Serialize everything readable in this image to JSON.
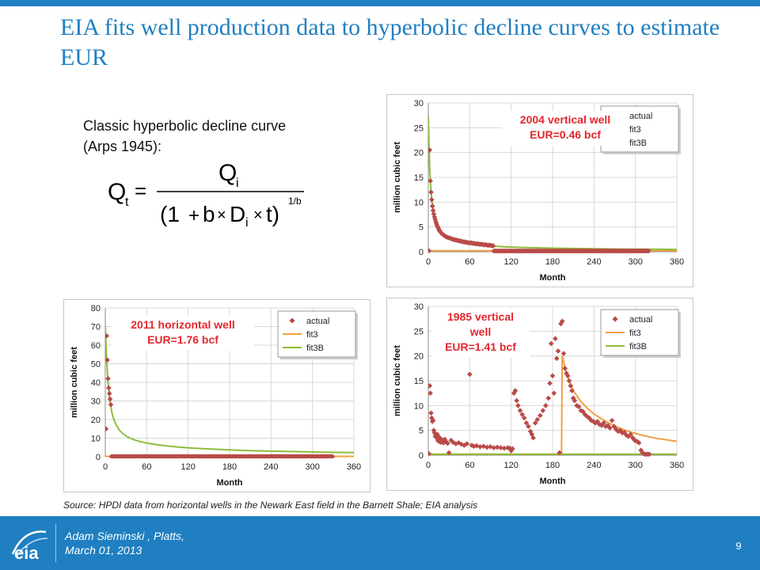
{
  "slide": {
    "title": "EIA fits well production data to hyperbolic decline curves to estimate EUR",
    "intro_line1": "Classic hyperbolic decline curve",
    "intro_line2": "(Arps 1945):",
    "formula": {
      "lhs": "Q",
      "lhs_sub": "t",
      "numerator": "Q",
      "numerator_sub": "i",
      "paren_open": "(1",
      "plus": "+",
      "b": "b",
      "times": "×",
      "d": "D",
      "d_sub": "i",
      "t_close": "t)",
      "exponent": "1/b"
    },
    "source": "Source: HPDI data from horizontal wells in the Newark East field in the Barnett Shale; EIA analysis",
    "footer_author": "Adam Sieminski , Platts,",
    "footer_date": "March 01, 2013",
    "page_number": "9",
    "logo_text": "eia"
  },
  "chart_data": [
    {
      "type": "scatter",
      "annotation_line1": "2004 vertical well",
      "annotation_line2": "EUR=0.46 bcf",
      "xlabel": "Month",
      "ylabel": "million cubic feet",
      "xlim": [
        0,
        360
      ],
      "ylim": [
        0,
        30
      ],
      "xticks": [
        0,
        60,
        120,
        180,
        240,
        300,
        360
      ],
      "yticks": [
        0,
        5,
        10,
        15,
        20,
        25,
        30
      ],
      "grid": true,
      "legend_position": "top-right",
      "series": [
        {
          "name": "actual",
          "kind": "scatter",
          "color": "#b94a48",
          "x": [
            1,
            2,
            3,
            4,
            5,
            6,
            7,
            8,
            9,
            10,
            11,
            12,
            13,
            14,
            15,
            16,
            17,
            18,
            20,
            22,
            24,
            26,
            28,
            30,
            32,
            34,
            36,
            38,
            40,
            42,
            44,
            46,
            48,
            50,
            52,
            54,
            56,
            58,
            60,
            62,
            64,
            66,
            68,
            70,
            72,
            74,
            76,
            78,
            80,
            82,
            84,
            86,
            88,
            90,
            92,
            94
          ],
          "y": [
            0.2,
            20.5,
            14.3,
            12.0,
            10.5,
            9.2,
            8.3,
            7.6,
            7.0,
            6.5,
            6.0,
            5.6,
            5.2,
            4.9,
            4.6,
            4.3,
            4.1,
            3.9,
            3.6,
            3.4,
            3.2,
            3.0,
            2.9,
            2.8,
            2.7,
            2.6,
            2.5,
            2.4,
            2.4,
            2.3,
            2.2,
            2.2,
            2.1,
            2.0,
            2.0,
            1.9,
            1.9,
            1.8,
            1.8,
            1.8,
            1.7,
            1.7,
            1.6,
            1.6,
            1.6,
            1.5,
            1.5,
            1.5,
            1.4,
            1.4,
            1.4,
            1.3,
            1.3,
            1.3,
            1.2,
            1.2
          ]
        },
        {
          "name": "fit3",
          "kind": "line",
          "color": "#f0a041",
          "x": [
            0,
            360
          ],
          "y": [
            0.2,
            0.2
          ]
        },
        {
          "name": "fit3B",
          "kind": "line",
          "color": "#8fbc3a",
          "x": [
            0,
            2,
            4,
            6,
            8,
            10,
            12,
            15,
            18,
            22,
            26,
            30,
            36,
            42,
            50,
            60,
            75,
            90,
            110,
            130,
            150,
            180,
            210,
            240,
            270,
            300,
            330,
            360
          ],
          "y": [
            27.5,
            17.0,
            12.0,
            9.3,
            7.6,
            6.4,
            5.6,
            4.7,
            4.1,
            3.5,
            3.0,
            2.7,
            2.3,
            2.0,
            1.75,
            1.5,
            1.3,
            1.15,
            1.0,
            0.9,
            0.82,
            0.72,
            0.66,
            0.6,
            0.55,
            0.52,
            0.49,
            0.46
          ]
        }
      ],
      "zero_points_range": [
        95,
        320
      ]
    },
    {
      "type": "scatter",
      "annotation_line1": "2011 horizontal well",
      "annotation_line2": "EUR=1.76 bcf",
      "xlabel": "Month",
      "ylabel": "million cubic feet",
      "xlim": [
        0,
        360
      ],
      "ylim": [
        0,
        80
      ],
      "xticks": [
        0,
        60,
        120,
        180,
        240,
        300,
        360
      ],
      "yticks": [
        0,
        10,
        20,
        30,
        40,
        50,
        60,
        70,
        80
      ],
      "grid": true,
      "legend_position": "top-right",
      "series": [
        {
          "name": "actual",
          "kind": "scatter",
          "color": "#b94a48",
          "x": [
            1,
            2,
            3,
            4,
            5,
            6,
            7,
            8
          ],
          "y": [
            15,
            65,
            52,
            42,
            37,
            34,
            31,
            28
          ]
        },
        {
          "name": "fit3",
          "kind": "line",
          "color": "#f0a041",
          "x": [
            0,
            360
          ],
          "y": [
            0.2,
            0.2
          ]
        },
        {
          "name": "fit3B",
          "kind": "line",
          "color": "#8fbc3a",
          "x": [
            0,
            2,
            4,
            6,
            8,
            10,
            13,
            16,
            20,
            25,
            30,
            36,
            42,
            50,
            60,
            75,
            90,
            110,
            130,
            150,
            180,
            210,
            240,
            270,
            300,
            330,
            360
          ],
          "y": [
            70,
            52,
            40,
            32,
            27,
            23,
            19.5,
            17,
            14.5,
            12.6,
            11.2,
            10,
            9.1,
            8.2,
            7.4,
            6.5,
            5.8,
            5.1,
            4.6,
            4.2,
            3.7,
            3.3,
            3.0,
            2.8,
            2.6,
            2.4,
            2.2
          ]
        }
      ],
      "zero_points_range": [
        9,
        330
      ]
    },
    {
      "type": "scatter",
      "annotation_line1": "1985 vertical",
      "annotation_line2": "well",
      "annotation_line3": "EUR=1.41 bcf",
      "xlabel": "Month",
      "ylabel": "million cubic feet",
      "xlim": [
        0,
        360
      ],
      "ylim": [
        0,
        30
      ],
      "xticks": [
        0,
        60,
        120,
        180,
        240,
        300,
        360
      ],
      "yticks": [
        0,
        5,
        10,
        15,
        20,
        25,
        30
      ],
      "grid": true,
      "legend_position": "top-right",
      "series": [
        {
          "name": "actual",
          "kind": "scatter",
          "color": "#b94a48",
          "x": [
            1,
            2,
            3,
            4,
            5,
            6,
            7,
            8,
            9,
            10,
            11,
            12,
            13,
            14,
            15,
            16,
            17,
            18,
            20,
            22,
            24,
            26,
            28,
            30,
            33,
            36,
            40,
            44,
            48,
            52,
            56,
            60,
            63,
            66,
            70,
            75,
            80,
            85,
            90,
            95,
            100,
            105,
            110,
            115,
            118,
            120,
            122,
            124,
            126,
            128,
            130,
            133,
            136,
            139,
            142,
            145,
            148,
            150,
            152,
            155,
            158,
            162,
            166,
            170,
            174,
            176,
            178,
            180,
            182,
            184,
            186,
            188,
            190,
            192,
            194,
            196,
            198,
            200,
            202,
            204,
            206,
            208,
            210,
            212,
            215,
            218,
            221,
            224,
            227,
            230,
            233,
            236,
            239,
            242,
            245,
            248,
            251,
            254,
            257,
            260,
            263,
            266,
            269,
            272,
            275,
            278,
            281,
            284,
            287,
            290,
            293,
            296,
            299,
            302,
            305,
            308,
            310,
            312,
            314,
            316,
            318,
            320
          ],
          "y": [
            0.3,
            14.0,
            12.5,
            8.5,
            7.5,
            6.8,
            7.0,
            5.0,
            4.5,
            3.8,
            4.0,
            3.5,
            4.2,
            3.0,
            2.8,
            3.6,
            2.9,
            2.6,
            3.1,
            2.5,
            3.2,
            2.7,
            2.4,
            0.5,
            3.0,
            2.6,
            2.3,
            2.5,
            2.2,
            2.0,
            2.3,
            16.3,
            2.0,
            1.8,
            1.9,
            1.7,
            1.8,
            1.6,
            1.7,
            1.5,
            1.6,
            1.5,
            1.4,
            1.5,
            1.4,
            0.9,
            1.3,
            12.5,
            13.0,
            11.0,
            10.0,
            9.0,
            8.2,
            7.5,
            6.5,
            5.8,
            4.8,
            4.2,
            3.5,
            6.5,
            7.2,
            8.0,
            9.0,
            10.0,
            11.5,
            14.5,
            22.5,
            16.0,
            12.5,
            23.5,
            19.5,
            21.0,
            0.5,
            26.5,
            27.0,
            20.5,
            17.5,
            16.5,
            16.0,
            15.0,
            14.0,
            13.0,
            11.5,
            11.0,
            10.0,
            9.8,
            9.0,
            8.8,
            8.2,
            7.8,
            7.5,
            7.0,
            6.8,
            6.5,
            6.8,
            6.2,
            6.0,
            6.5,
            5.8,
            6.0,
            5.5,
            7.0,
            5.8,
            5.2,
            4.8,
            5.0,
            4.5,
            4.6,
            4.0,
            3.8,
            4.2,
            3.5,
            3.0,
            2.8,
            2.5,
            1.0,
            0.5,
            0.3,
            0.2,
            0.2,
            0.2,
            0.2
          ]
        },
        {
          "name": "fit3",
          "kind": "line",
          "color": "#f0a041",
          "x": [
            0,
            193,
            194,
            195,
            200,
            210,
            220,
            230,
            240,
            250,
            260,
            270,
            280,
            290,
            300,
            310,
            320,
            330,
            340,
            350,
            360
          ],
          "y": [
            0.2,
            0.2,
            20.0,
            19.5,
            16.5,
            13.0,
            11.0,
            9.5,
            8.3,
            7.4,
            6.6,
            5.9,
            5.3,
            4.8,
            4.4,
            4.0,
            3.7,
            3.4,
            3.2,
            3.0,
            2.8
          ]
        },
        {
          "name": "fit3B",
          "kind": "line",
          "color": "#8fbc3a",
          "x": [
            0,
            360
          ],
          "y": [
            0.2,
            0.2
          ]
        }
      ],
      "zero_points_range": [
        0,
        0
      ]
    }
  ]
}
